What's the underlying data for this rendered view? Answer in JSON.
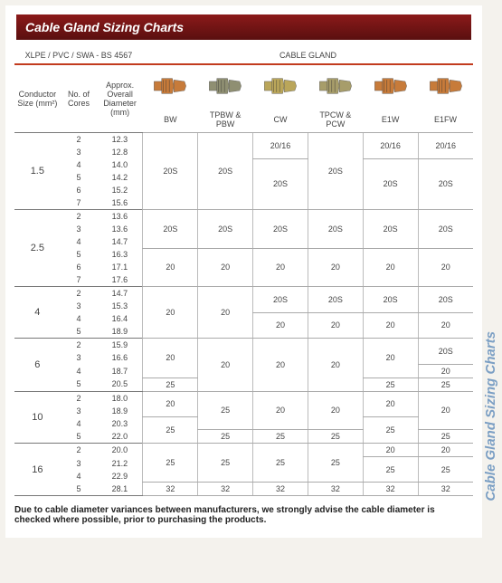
{
  "title": "Cable Gland Sizing Charts",
  "side_title": "Cable Gland Sizing Charts",
  "title_fill": "#8b1a1a",
  "spec_header": "XLPE / PVC / SWA - BS 4567",
  "gland_header": "CABLE GLAND",
  "columns": {
    "c1": "Conductor Size (mm²)",
    "c2": "No. of Cores",
    "c3": "Approx. Overall Diameter (mm)"
  },
  "gland_types": [
    "BW",
    "TPBW & PBW",
    "CW",
    "TPCW & PCW",
    "E1W",
    "E1FW"
  ],
  "gland_colors": [
    "#c77b3a",
    "#8f8f72",
    "#baa65a",
    "#a79d6a",
    "#c77b3a",
    "#c77b3a"
  ],
  "groups": [
    {
      "size": "1.5",
      "rows": [
        {
          "cores": "2",
          "dia": "12.3"
        },
        {
          "cores": "3",
          "dia": "12.8"
        },
        {
          "cores": "4",
          "dia": "14.0"
        },
        {
          "cores": "5",
          "dia": "14.2"
        },
        {
          "cores": "6",
          "dia": "15.2"
        },
        {
          "cores": "7",
          "dia": "15.6"
        }
      ],
      "cells": {
        "bw": [
          {
            "span": 6,
            "v": "20S"
          }
        ],
        "pbw": [
          {
            "span": 6,
            "v": "20S"
          }
        ],
        "cw": [
          {
            "span": 2,
            "v": "20/16"
          },
          {
            "span": 4,
            "v": "20S"
          }
        ],
        "pcw": [
          {
            "span": 6,
            "v": "20S"
          }
        ],
        "e1w": [
          {
            "span": 2,
            "v": "20/16"
          },
          {
            "span": 4,
            "v": "20S"
          }
        ],
        "e1fw": [
          {
            "span": 2,
            "v": "20/16"
          },
          {
            "span": 4,
            "v": "20S"
          }
        ]
      }
    },
    {
      "size": "2.5",
      "rows": [
        {
          "cores": "2",
          "dia": "13.6"
        },
        {
          "cores": "3",
          "dia": "13.6"
        },
        {
          "cores": "4",
          "dia": "14.7"
        },
        {
          "cores": "5",
          "dia": "16.3"
        },
        {
          "cores": "6",
          "dia": "17.1"
        },
        {
          "cores": "7",
          "dia": "17.6"
        }
      ],
      "cells": {
        "bw": [
          {
            "span": 3,
            "v": "20S"
          },
          {
            "span": 3,
            "v": "20"
          }
        ],
        "pbw": [
          {
            "span": 3,
            "v": "20S"
          },
          {
            "span": 3,
            "v": "20"
          }
        ],
        "cw": [
          {
            "span": 3,
            "v": "20S"
          },
          {
            "span": 3,
            "v": "20"
          }
        ],
        "pcw": [
          {
            "span": 3,
            "v": "20S"
          },
          {
            "span": 3,
            "v": "20"
          }
        ],
        "e1w": [
          {
            "span": 3,
            "v": "20S"
          },
          {
            "span": 3,
            "v": "20"
          }
        ],
        "e1fw": [
          {
            "span": 3,
            "v": "20S"
          },
          {
            "span": 3,
            "v": "20"
          }
        ]
      }
    },
    {
      "size": "4",
      "rows": [
        {
          "cores": "2",
          "dia": "14.7"
        },
        {
          "cores": "3",
          "dia": "15.3"
        },
        {
          "cores": "4",
          "dia": "16.4"
        },
        {
          "cores": "5",
          "dia": "18.9"
        }
      ],
      "cells": {
        "bw": [
          {
            "span": 4,
            "v": "20"
          }
        ],
        "pbw": [
          {
            "span": 4,
            "v": "20"
          }
        ],
        "cw": [
          {
            "span": 2,
            "v": "20S"
          },
          {
            "span": 2,
            "v": "20"
          }
        ],
        "pcw": [
          {
            "span": 2,
            "v": "20S"
          },
          {
            "span": 2,
            "v": "20"
          }
        ],
        "e1w": [
          {
            "span": 2,
            "v": "20S"
          },
          {
            "span": 2,
            "v": "20"
          }
        ],
        "e1fw": [
          {
            "span": 2,
            "v": "20S"
          },
          {
            "span": 2,
            "v": "20"
          }
        ]
      }
    },
    {
      "size": "6",
      "rows": [
        {
          "cores": "2",
          "dia": "15.9"
        },
        {
          "cores": "3",
          "dia": "16.6"
        },
        {
          "cores": "4",
          "dia": "18.7"
        },
        {
          "cores": "5",
          "dia": "20.5"
        }
      ],
      "cells": {
        "bw": [
          {
            "span": 3,
            "v": "20"
          },
          {
            "span": 1,
            "v": "25"
          }
        ],
        "pbw": [
          {
            "span": 4,
            "v": "20"
          }
        ],
        "cw": [
          {
            "span": 4,
            "v": "20"
          }
        ],
        "pcw": [
          {
            "span": 4,
            "v": "20"
          }
        ],
        "e1w": [
          {
            "span": 3,
            "v": "20"
          },
          {
            "span": 1,
            "v": "25"
          }
        ],
        "e1fw": [
          {
            "span": 2,
            "v": "20S"
          },
          {
            "span": 1,
            "v": "20"
          },
          {
            "span": 1,
            "v": "25"
          }
        ]
      }
    },
    {
      "size": "10",
      "rows": [
        {
          "cores": "2",
          "dia": "18.0"
        },
        {
          "cores": "3",
          "dia": "18.9"
        },
        {
          "cores": "4",
          "dia": "20.3"
        },
        {
          "cores": "5",
          "dia": "22.0"
        }
      ],
      "cells": {
        "bw": [
          {
            "span": 2,
            "v": "20"
          },
          {
            "span": 2,
            "v": "25"
          }
        ],
        "pbw": [
          {
            "span": 3,
            "v": "25"
          },
          {
            "span": 1,
            "v": "25"
          }
        ],
        "cw": [
          {
            "span": 3,
            "v": "20"
          },
          {
            "span": 1,
            "v": "25"
          }
        ],
        "pcw": [
          {
            "span": 3,
            "v": "20"
          },
          {
            "span": 1,
            "v": "25"
          }
        ],
        "e1w": [
          {
            "span": 2,
            "v": "20"
          },
          {
            "span": 2,
            "v": "25"
          }
        ],
        "e1fw": [
          {
            "span": 3,
            "v": "20"
          },
          {
            "span": 1,
            "v": "25"
          }
        ]
      }
    },
    {
      "size": "16",
      "rows": [
        {
          "cores": "2",
          "dia": "20.0"
        },
        {
          "cores": "3",
          "dia": "21.2"
        },
        {
          "cores": "4",
          "dia": "22.9"
        },
        {
          "cores": "5",
          "dia": "28.1"
        }
      ],
      "cells": {
        "bw": [
          {
            "span": 3,
            "v": "25"
          },
          {
            "span": 1,
            "v": "32"
          }
        ],
        "pbw": [
          {
            "span": 3,
            "v": "25"
          },
          {
            "span": 1,
            "v": "32"
          }
        ],
        "cw": [
          {
            "span": 3,
            "v": "25"
          },
          {
            "span": 1,
            "v": "32"
          }
        ],
        "pcw": [
          {
            "span": 3,
            "v": "25"
          },
          {
            "span": 1,
            "v": "32"
          }
        ],
        "e1w": [
          {
            "span": 1,
            "v": "20"
          },
          {
            "span": 2,
            "v": "25"
          },
          {
            "span": 1,
            "v": "32"
          }
        ],
        "e1fw": [
          {
            "span": 1,
            "v": "20"
          },
          {
            "span": 2,
            "v": "25"
          },
          {
            "span": 1,
            "v": "32"
          }
        ]
      }
    }
  ],
  "footnote": "Due to cable diameter variances between manufacturers, we strongly advise the cable diameter is checked where possible, prior to purchasing the products."
}
